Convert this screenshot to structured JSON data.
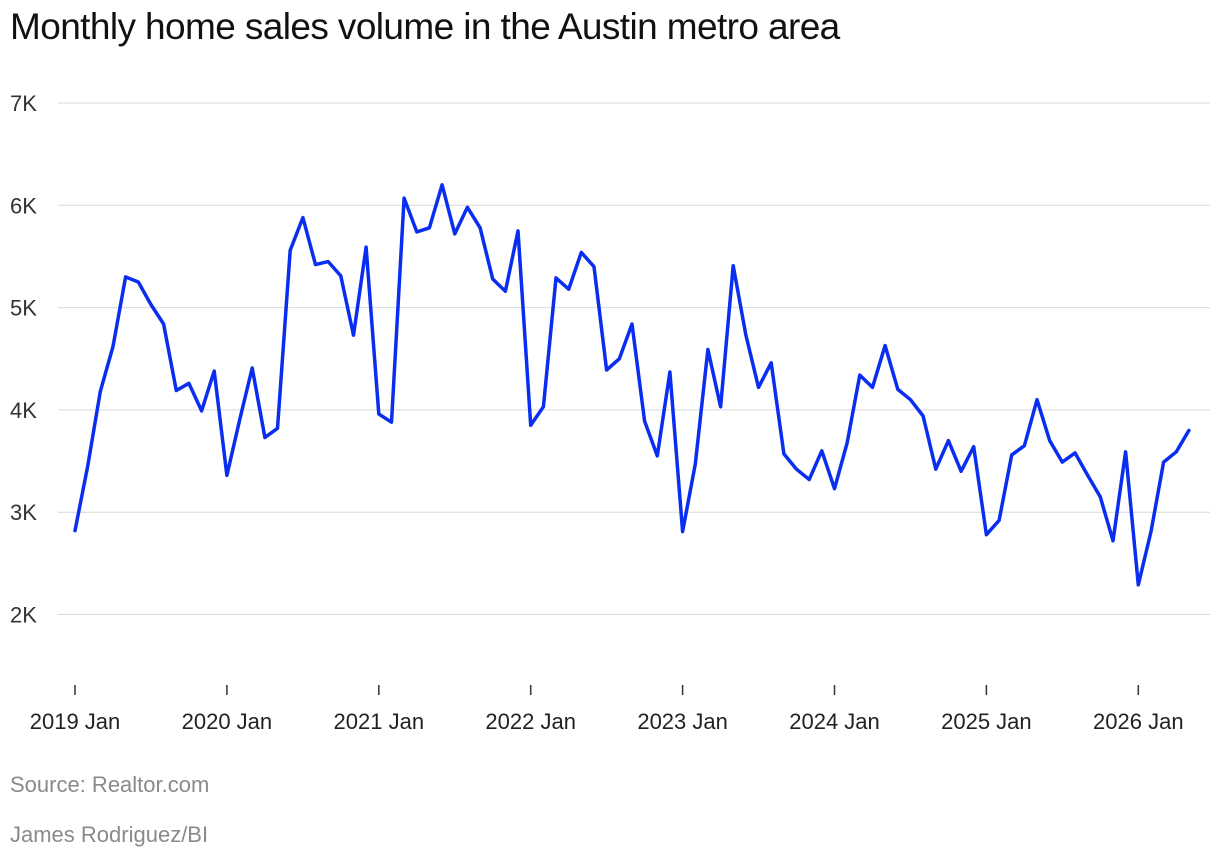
{
  "chart_data": {
    "type": "line",
    "title": "Monthly home sales volume in the Austin metro area",
    "xlabel": "",
    "ylabel": "",
    "ylim": [
      1300,
      7000
    ],
    "yticks": [
      2000,
      3000,
      4000,
      5000,
      6000,
      7000
    ],
    "ytick_labels": [
      "2K",
      "3K",
      "4K",
      "5K",
      "6K",
      "7K"
    ],
    "xticks": [
      "2019-01",
      "2020-01",
      "2021-01",
      "2022-01",
      "2023-01",
      "2024-01",
      "2025-01",
      "2026-01"
    ],
    "xtick_labels": [
      "2019 Jan",
      "2020 Jan",
      "2021 Jan",
      "2022 Jan",
      "2023 Jan",
      "2024 Jan",
      "2025 Jan",
      "2026 Jan"
    ],
    "grid": true,
    "series_color": "#0a2ef0",
    "series": [
      {
        "x": [
          "2019-01",
          "2019-02",
          "2019-03",
          "2019-04",
          "2019-05",
          "2019-06",
          "2019-07",
          "2019-08",
          "2019-09",
          "2019-10",
          "2019-11",
          "2019-12",
          "2020-01",
          "2020-02",
          "2020-03",
          "2020-04",
          "2020-05",
          "2020-06",
          "2020-07",
          "2020-08",
          "2020-09",
          "2020-10",
          "2020-11",
          "2020-12",
          "2021-01",
          "2021-02",
          "2021-03",
          "2021-04",
          "2021-05",
          "2021-06",
          "2021-07",
          "2021-08",
          "2021-09",
          "2021-10",
          "2021-11",
          "2021-12",
          "2022-01",
          "2022-02",
          "2022-03",
          "2022-04",
          "2022-05",
          "2022-06",
          "2022-07",
          "2022-08",
          "2022-09",
          "2022-10",
          "2022-11",
          "2022-12",
          "2023-01",
          "2023-02",
          "2023-03",
          "2023-04",
          "2023-05",
          "2023-06",
          "2023-07",
          "2023-08",
          "2023-09",
          "2023-10",
          "2023-11",
          "2023-12",
          "2024-01",
          "2024-02",
          "2024-03",
          "2024-04",
          "2024-05",
          "2024-06",
          "2024-07",
          "2024-08",
          "2024-09",
          "2024-10",
          "2024-11",
          "2024-12",
          "2025-01",
          "2025-02",
          "2025-03",
          "2025-04",
          "2025-05",
          "2025-06",
          "2025-07",
          "2025-08",
          "2025-09",
          "2025-10",
          "2025-11",
          "2025-12",
          "2026-01",
          "2026-02",
          "2026-03",
          "2026-04",
          "2026-05"
        ],
        "values": [
          2820,
          3450,
          4180,
          4620,
          5300,
          5250,
          5030,
          4840,
          4190,
          4260,
          3990,
          4380,
          3360,
          3900,
          4410,
          3730,
          3820,
          5560,
          5880,
          5420,
          5450,
          5310,
          4730,
          5590,
          3960,
          3880,
          6070,
          5740,
          5780,
          6200,
          5720,
          5980,
          5780,
          5280,
          5160,
          5750,
          3850,
          4030,
          5290,
          5180,
          5540,
          5400,
          4390,
          4500,
          4840,
          3890,
          3550,
          4370,
          2810,
          3470,
          4590,
          4030,
          5410,
          4730,
          4220,
          4460,
          3570,
          3420,
          3320,
          3600,
          3230,
          3680,
          4340,
          4220,
          4630,
          4200,
          4100,
          3940,
          3420,
          3700,
          3400,
          3640,
          2780,
          2920,
          3560,
          3650,
          4100,
          3700,
          3490,
          3580,
          3360,
          3150,
          2720,
          3590,
          2290,
          2810,
          3490,
          3590,
          3800
        ]
      }
    ]
  },
  "footer": {
    "source": "Source: Realtor.com",
    "credit": "James Rodriguez/BI"
  }
}
